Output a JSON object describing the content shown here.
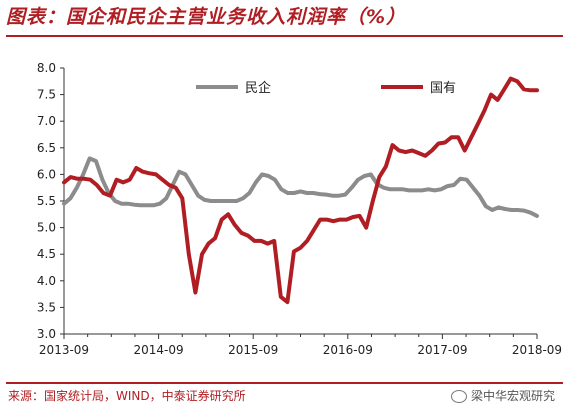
{
  "header": {
    "title": "图表：国企和民企主营业务收入利润率（%）"
  },
  "footer": {
    "source": "来源：国家统计局，WIND，中泰证券研究所",
    "watermark": "梁中华宏观研究"
  },
  "colors": {
    "accent": "#b01e23",
    "series_private": "#8c8c8c",
    "series_state": "#b01e23"
  },
  "chart_data": {
    "type": "line",
    "title": "",
    "xlabel": "",
    "ylabel": "",
    "ylim": [
      3.0,
      8.0
    ],
    "yticks": [
      "3.0",
      "3.5",
      "4.0",
      "4.5",
      "5.0",
      "5.5",
      "6.0",
      "6.5",
      "7.0",
      "7.5",
      "8.0"
    ],
    "xticks": [
      "2013-09",
      "2014-09",
      "2015-09",
      "2016-09",
      "2017-09",
      "2018-09"
    ],
    "legend": "top",
    "grid": false,
    "series": [
      {
        "name": "民企",
        "values": [
          5.45,
          5.55,
          5.75,
          6.0,
          6.3,
          6.25,
          5.9,
          5.65,
          5.5,
          5.45,
          5.45,
          5.43,
          5.42,
          5.42,
          5.42,
          5.45,
          5.55,
          5.8,
          6.05,
          6.0,
          5.8,
          5.6,
          5.52,
          5.5,
          5.5,
          5.5,
          5.5,
          5.5,
          5.55,
          5.65,
          5.85,
          6.0,
          5.97,
          5.9,
          5.72,
          5.65,
          5.65,
          5.68,
          5.65,
          5.65,
          5.63,
          5.62,
          5.6,
          5.6,
          5.62,
          5.75,
          5.9,
          5.97,
          6.0,
          5.82,
          5.75,
          5.72,
          5.72,
          5.72,
          5.7,
          5.7,
          5.7,
          5.72,
          5.7,
          5.72,
          5.78,
          5.8,
          5.92,
          5.9,
          5.75,
          5.6,
          5.4,
          5.33,
          5.38,
          5.35,
          5.33,
          5.33,
          5.32,
          5.28,
          5.22
        ]
      },
      {
        "name": "国有",
        "values": [
          5.85,
          5.95,
          5.92,
          5.92,
          5.9,
          5.8,
          5.65,
          5.6,
          5.9,
          5.85,
          5.9,
          6.12,
          6.05,
          6.02,
          6.0,
          5.9,
          5.8,
          5.75,
          5.55,
          4.5,
          3.78,
          4.5,
          4.7,
          4.8,
          5.15,
          5.25,
          5.05,
          4.9,
          4.85,
          4.75,
          4.75,
          4.7,
          4.75,
          3.7,
          3.6,
          4.55,
          4.62,
          4.75,
          4.95,
          5.15,
          5.15,
          5.12,
          5.15,
          5.15,
          5.2,
          5.22,
          5.0,
          5.5,
          5.95,
          6.15,
          6.55,
          6.45,
          6.42,
          6.45,
          6.4,
          6.35,
          6.45,
          6.58,
          6.6,
          6.7,
          6.7,
          6.45,
          6.7,
          6.95,
          7.2,
          7.5,
          7.4,
          7.6,
          7.8,
          7.75,
          7.6,
          7.58,
          7.58
        ]
      }
    ]
  }
}
